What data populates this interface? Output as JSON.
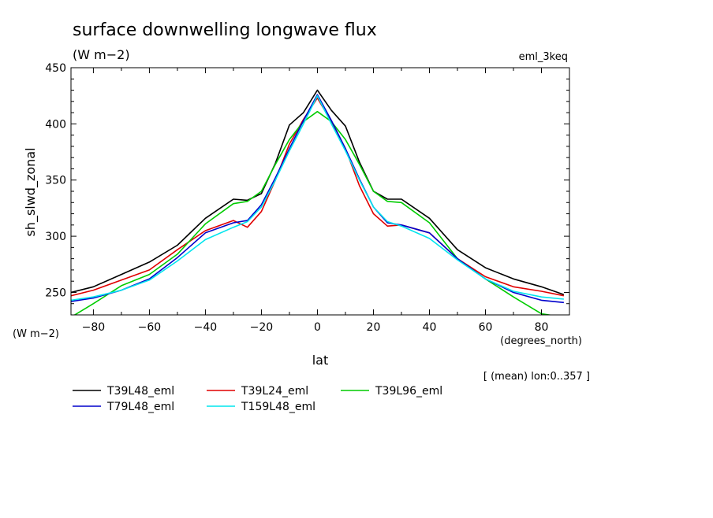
{
  "chart_data": {
    "type": "line",
    "title": "surface downwelling longwave flux",
    "units": "(W m−2)",
    "experiment": "eml_3keq",
    "ylabel": "sh_slwd_zonal",
    "y_units": "(W m−2)",
    "xlabel": "lat",
    "x_units": "(degrees_north)",
    "footnote": "[ (mean) lon:0..357 ]",
    "xlim": [
      -88,
      90
    ],
    "ylim": [
      230,
      450
    ],
    "x_ticks": [
      -80,
      -60,
      -40,
      -20,
      0,
      20,
      40,
      60,
      80
    ],
    "x_tick_labels": [
      "−80",
      "−60",
      "−40",
      "−20",
      "0",
      "20",
      "40",
      "60",
      "80"
    ],
    "y_ticks": [
      250,
      300,
      350,
      400,
      450
    ],
    "y_tick_labels": [
      "250",
      "300",
      "350",
      "400",
      "450"
    ],
    "x": [
      -88,
      -80,
      -70,
      -60,
      -50,
      -40,
      -30,
      -25,
      -20,
      -15,
      -10,
      -5,
      0,
      5,
      10,
      15,
      20,
      25,
      30,
      40,
      50,
      60,
      70,
      80,
      88
    ],
    "series": [
      {
        "name": "T39L48_eml",
        "color": "#000000",
        "values": [
          250,
          255,
          266,
          277,
          292,
          316,
          333,
          332,
          338,
          365,
          399,
          410,
          430,
          412,
          398,
          366,
          340,
          333,
          333,
          316,
          288,
          272,
          262,
          255,
          248
        ]
      },
      {
        "name": "T39L24_eml",
        "color": "#e00000",
        "values": [
          247,
          252,
          261,
          270,
          288,
          305,
          314,
          308,
          322,
          350,
          382,
          404,
          423,
          402,
          378,
          345,
          320,
          309,
          310,
          303,
          280,
          264,
          255,
          251,
          247
        ]
      },
      {
        "name": "T39L96_eml",
        "color": "#00cc00",
        "values": [
          228,
          240,
          256,
          266,
          284,
          311,
          329,
          331,
          340,
          364,
          386,
          402,
          411,
          402,
          386,
          364,
          340,
          331,
          330,
          312,
          280,
          262,
          246,
          231,
          228
        ]
      },
      {
        "name": "T79L48_eml",
        "color": "#0000cc",
        "values": [
          242,
          245,
          252,
          262,
          281,
          303,
          312,
          314,
          328,
          352,
          378,
          403,
          426,
          403,
          378,
          351,
          326,
          312,
          310,
          303,
          280,
          262,
          250,
          243,
          241
        ]
      },
      {
        "name": "T159L48_eml",
        "color": "#00e5ee",
        "values": [
          243,
          246,
          252,
          261,
          278,
          297,
          308,
          313,
          326,
          350,
          376,
          400,
          425,
          400,
          376,
          350,
          326,
          313,
          309,
          298,
          279,
          262,
          251,
          246,
          244
        ]
      }
    ],
    "legend_position": "bottom-left",
    "grid": false
  }
}
